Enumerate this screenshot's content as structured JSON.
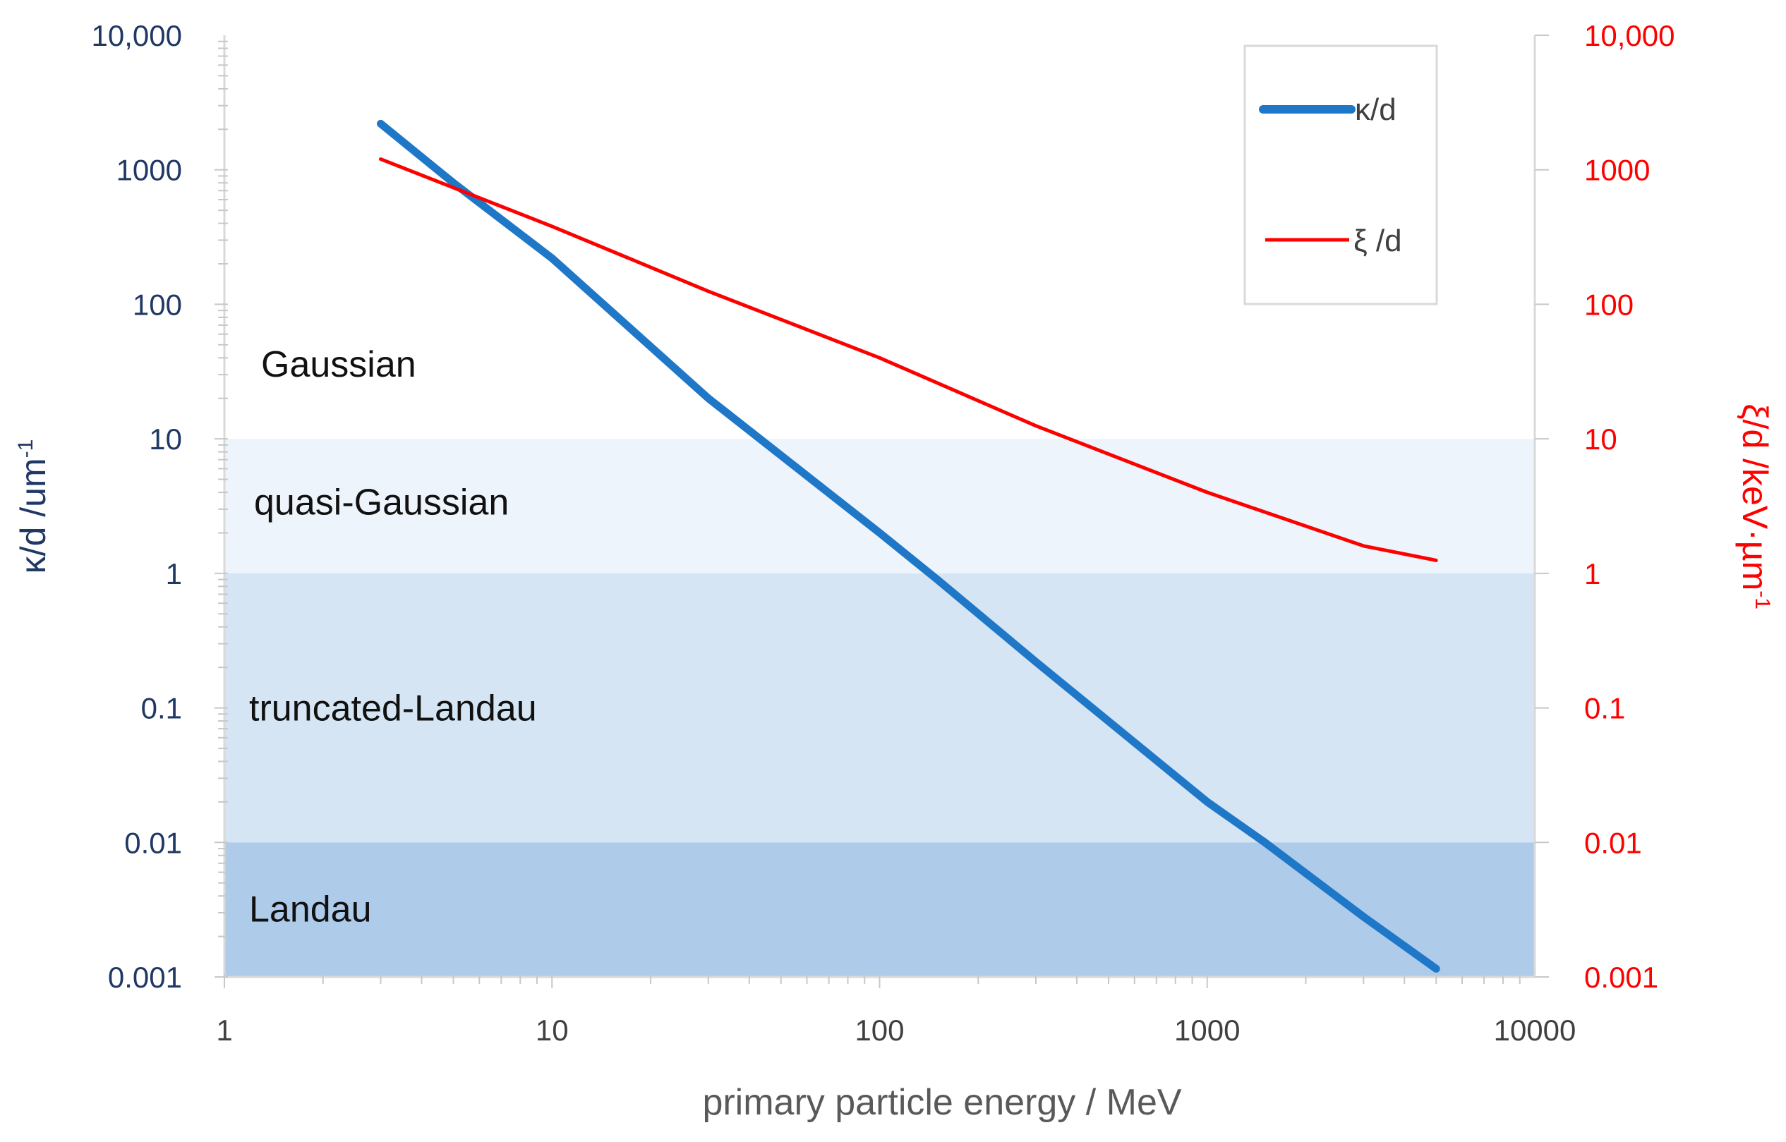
{
  "chart_data": {
    "type": "line",
    "xlabel": "primary particle energy / MeV",
    "x_scale": "log",
    "xlim": [
      1,
      10000
    ],
    "x_ticks": [
      "1",
      "10",
      "100",
      "1000",
      "10000"
    ],
    "ylabel_left": "κ/d /um",
    "ylabel_left_sup": "-1",
    "ylabel_right": "ξ/d /keV·µm",
    "ylabel_right_sup": "-1",
    "y_scale": "log",
    "ylim": [
      0.001,
      10000
    ],
    "y_left_ticks": [
      "10,000",
      "1000",
      "100",
      "10",
      "1",
      "0.1",
      "0.01",
      "0.001"
    ],
    "y_right_ticks": [
      "10,000",
      "1000",
      "100",
      "10",
      "1",
      "0.1",
      "0.01",
      "0.001"
    ],
    "regions": [
      {
        "label": "Gaussian",
        "y_from": 10,
        "y_to": 10000,
        "color": "#ffffff"
      },
      {
        "label": "quasi-Gaussian",
        "y_from": 1,
        "y_to": 10,
        "color": "#edf4fb"
      },
      {
        "label": "truncated-Landau",
        "y_from": 0.01,
        "y_to": 1,
        "color": "#d5e5f4"
      },
      {
        "label": "Landau",
        "y_from": 0.001,
        "y_to": 0.01,
        "color": "#aecbea"
      }
    ],
    "series": [
      {
        "name": "κ/d",
        "axis": "left",
        "color": "#1f77c8",
        "x": [
          3,
          5,
          10,
          30,
          100,
          150,
          300,
          1000,
          1500,
          3000,
          5000
        ],
        "y": [
          2200,
          800,
          220,
          20,
          2,
          0.9,
          0.22,
          0.02,
          0.01,
          0.0028,
          0.00115
        ]
      },
      {
        "name": "ξ /d",
        "axis": "right",
        "color": "#ff0000",
        "x": [
          3,
          10,
          30,
          100,
          300,
          1000,
          3000,
          5000
        ],
        "y": [
          1200,
          380,
          125,
          40,
          12.5,
          4,
          1.6,
          1.25
        ]
      }
    ],
    "legend": {
      "position": "top-right"
    }
  }
}
